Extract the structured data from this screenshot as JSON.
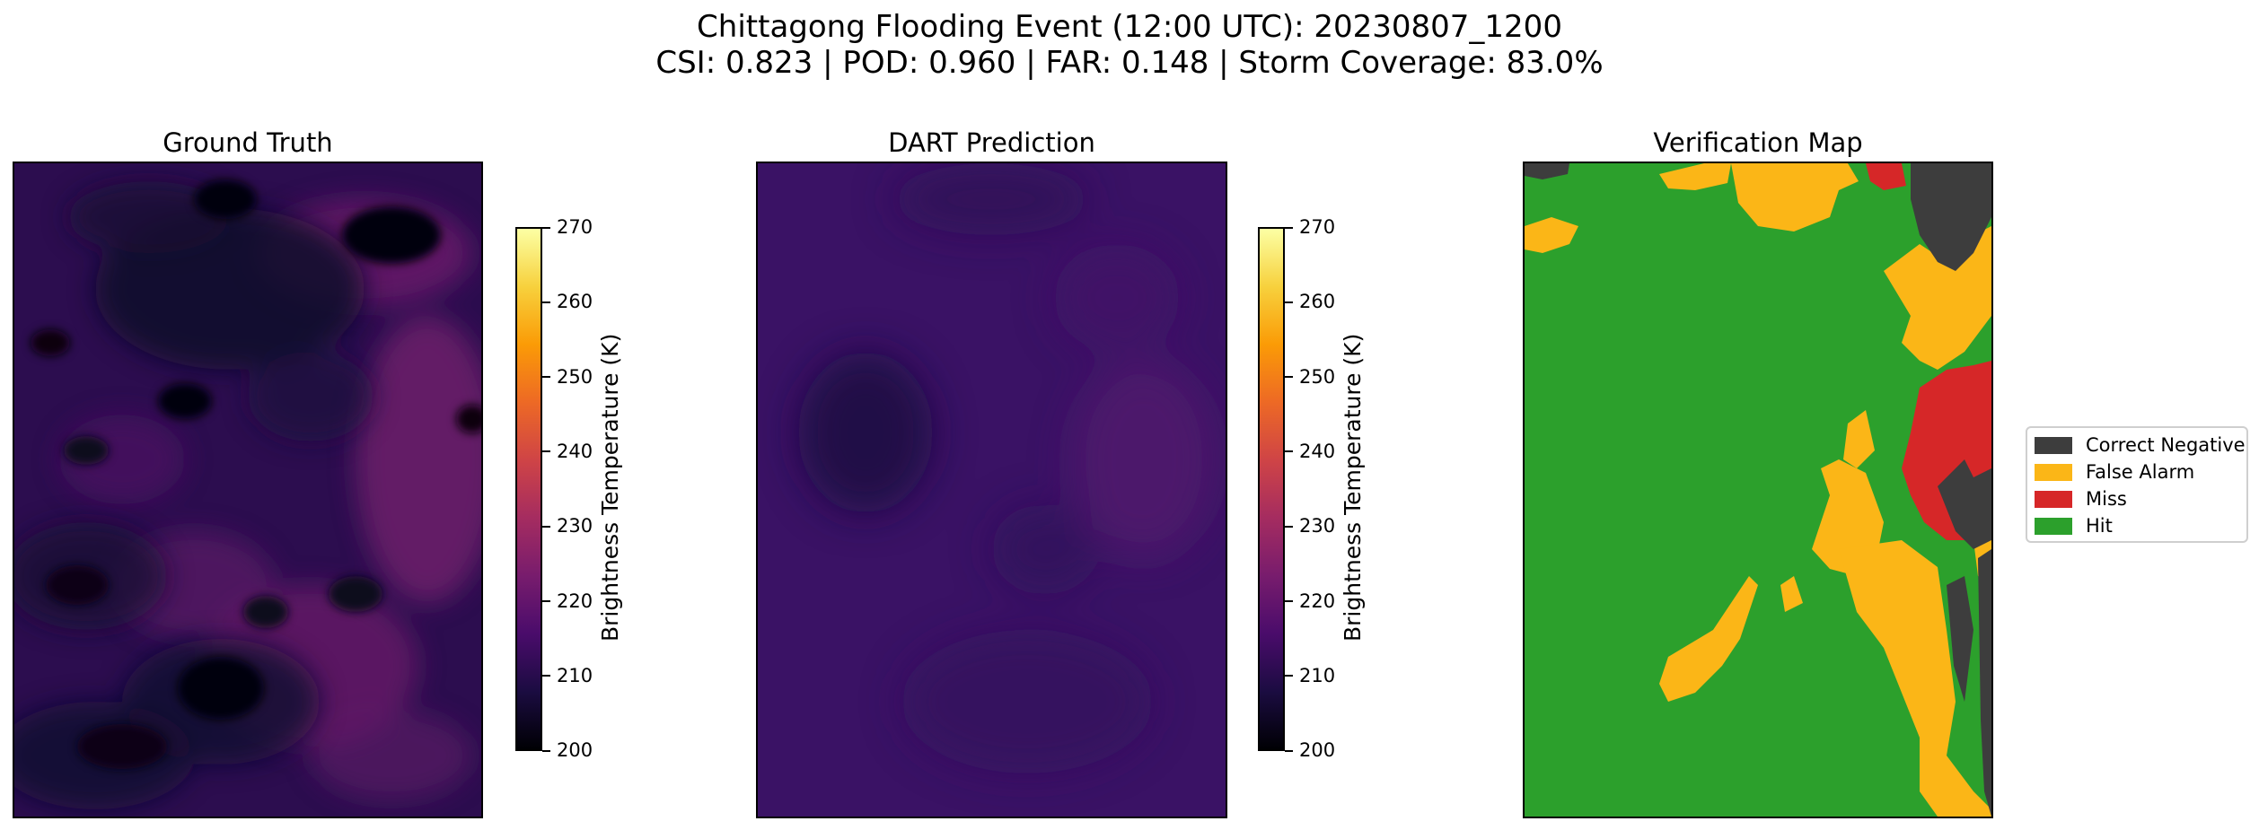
{
  "figure": {
    "title_line1": "Chittagong Flooding Event (12:00 UTC): 20230807_1200",
    "title_line2": "CSI: 0.823 | POD: 0.960 | FAR: 0.148 | Storm Coverage: 83.0%"
  },
  "chart_data": [
    {
      "type": "heatmap",
      "title": "Ground Truth",
      "colormap": "inferno",
      "colorbar": {
        "label": "Brightness Temperature (K)",
        "range": [
          200,
          270
        ],
        "ticks": [
          "200",
          "210",
          "220",
          "230",
          "240",
          "250",
          "260",
          "270"
        ]
      },
      "approx_value_range_K": [
        200,
        232
      ]
    },
    {
      "type": "heatmap",
      "title": "DART Prediction",
      "colormap": "inferno",
      "colorbar": {
        "label": "Brightness Temperature (K)",
        "range": [
          200,
          270
        ],
        "ticks": [
          "200",
          "210",
          "220",
          "230",
          "240",
          "250",
          "260",
          "270"
        ]
      },
      "approx_value_range_K": [
        212,
        226
      ]
    },
    {
      "type": "heatmap",
      "title": "Verification Map",
      "categories": [
        "Correct Negative",
        "False Alarm",
        "Miss",
        "Hit"
      ],
      "colors": [
        "#3d3d3d",
        "#fbb617",
        "#d62728",
        "#2ca02c"
      ],
      "metrics": {
        "CSI": 0.823,
        "POD": 0.96,
        "FAR": 0.148,
        "storm_coverage_pct": 83.0
      }
    }
  ],
  "legend": {
    "placement": "right",
    "items": [
      {
        "label": "Correct Negative",
        "color": "#3d3d3d"
      },
      {
        "label": "False Alarm",
        "color": "#fbb617"
      },
      {
        "label": "Miss",
        "color": "#d62728"
      },
      {
        "label": "Hit",
        "color": "#2ca02c"
      }
    ]
  }
}
